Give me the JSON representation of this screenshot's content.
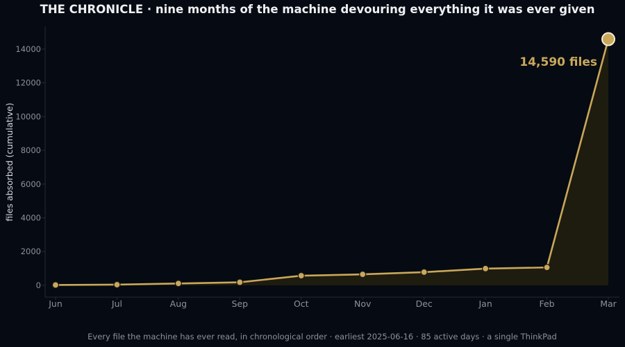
{
  "page": {
    "title": "THE CHRONICLE  ·  nine months of the machine devouring everything it was ever given",
    "footer": "Every file the machine has ever read, in chronological order  ·  earliest 2025-06-16  ·  85 active days  ·  a single ThinkPad"
  },
  "colors": {
    "background": "#060a12",
    "line": "#c9a85a",
    "fill": "#27230f",
    "axis": "#252b37",
    "tick_text": "#8c919c"
  },
  "chart_data": {
    "type": "area",
    "categories": [
      "Jun",
      "Jul",
      "Aug",
      "Sep",
      "Oct",
      "Nov",
      "Dec",
      "Jan",
      "Feb",
      "Mar"
    ],
    "series": [
      {
        "values": [
          20,
          40,
          110,
          180,
          570,
          650,
          780,
          990,
          1060,
          14590
        ]
      }
    ],
    "ylabel": "files absorbed (cumulative)",
    "xlabel": "",
    "ylim": [
      -700,
      15350
    ],
    "yticks": [
      0,
      2000,
      4000,
      6000,
      8000,
      10000,
      12000,
      14000
    ],
    "annotations": [
      {
        "text": "14,590 files",
        "target": "last-point"
      }
    ],
    "grid": false,
    "legend": "none"
  }
}
